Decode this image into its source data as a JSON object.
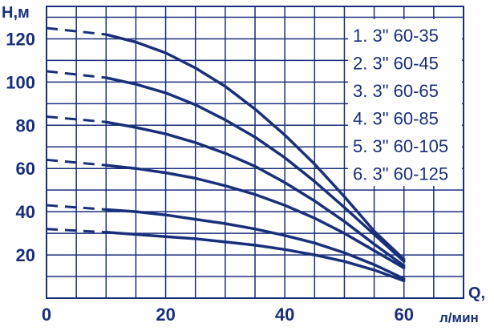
{
  "chart_data": {
    "type": "line",
    "title": "",
    "ylabel": "H,м",
    "xlabel_symbol": "Q,",
    "xlabel_unit": "л/мин",
    "x_ticks": [
      "0",
      "20",
      "40",
      "60"
    ],
    "y_ticks": [
      "20",
      "40",
      "60",
      "80",
      "100",
      "120"
    ],
    "xlim": [
      0,
      70
    ],
    "ylim": [
      0,
      135
    ],
    "grid": true,
    "legend_position": "top-right",
    "colors": {
      "line": "#1a2f7a",
      "grid": "#1a2f7a",
      "text": "#1a2f7a",
      "background": "#ffffff"
    },
    "series": [
      {
        "name": "1. 3\" 60-35",
        "dashed_x": [
          0,
          10
        ],
        "dashed_y": [
          32,
          30.5
        ],
        "x": [
          10,
          15,
          20,
          25,
          30,
          35,
          40,
          45,
          50,
          55,
          60
        ],
        "y": [
          30.5,
          29.5,
          28.5,
          27.5,
          26,
          24.5,
          22.5,
          20,
          17,
          13,
          8
        ]
      },
      {
        "name": "2. 3\" 60-45",
        "dashed_x": [
          0,
          10
        ],
        "dashed_y": [
          43,
          41
        ],
        "x": [
          10,
          15,
          20,
          25,
          30,
          35,
          40,
          45,
          50,
          55,
          60
        ],
        "y": [
          41,
          40,
          38.5,
          36.5,
          34.5,
          32,
          29,
          25.5,
          21,
          15.5,
          9
        ]
      },
      {
        "name": "3. 3\" 60-65",
        "dashed_x": [
          0,
          10
        ],
        "dashed_y": [
          64,
          61.5
        ],
        "x": [
          10,
          15,
          20,
          25,
          30,
          35,
          40,
          45,
          50,
          55,
          60
        ],
        "y": [
          61.5,
          60,
          58,
          55.5,
          52,
          48,
          43,
          37,
          30,
          22,
          14
        ]
      },
      {
        "name": "4. 3\" 60-85",
        "dashed_x": [
          0,
          10
        ],
        "dashed_y": [
          84,
          81.5
        ],
        "x": [
          10,
          15,
          20,
          25,
          30,
          35,
          40,
          45,
          50,
          55,
          60
        ],
        "y": [
          81.5,
          79,
          76,
          72,
          67,
          61,
          53.5,
          45,
          35.5,
          25,
          15
        ]
      },
      {
        "name": "5. 3\" 60-105",
        "dashed_x": [
          0,
          10
        ],
        "dashed_y": [
          105,
          102
        ],
        "x": [
          10,
          15,
          20,
          25,
          30,
          35,
          40,
          45,
          50,
          55,
          60
        ],
        "y": [
          102,
          99,
          95,
          89.5,
          82.5,
          74.5,
          65,
          54,
          42,
          29.5,
          17
        ]
      },
      {
        "name": "6. 3\" 60-125",
        "dashed_x": [
          0,
          10
        ],
        "dashed_y": [
          125,
          122
        ],
        "x": [
          10,
          15,
          20,
          25,
          30,
          35,
          40,
          45,
          50,
          55,
          60
        ],
        "y": [
          122,
          118.5,
          113.5,
          106.5,
          98,
          87.5,
          75.5,
          62,
          47,
          31,
          18
        ]
      }
    ]
  }
}
